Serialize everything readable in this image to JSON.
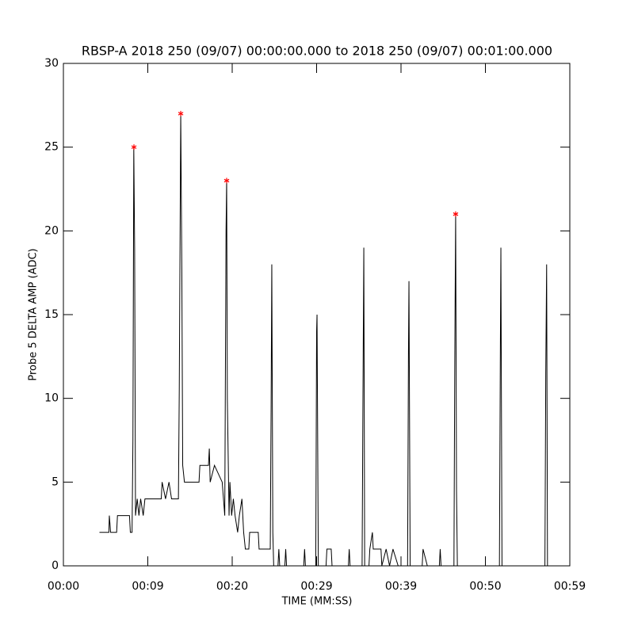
{
  "chart_data": {
    "type": "line",
    "title": "RBSP-A 2018 250 (09/07) 00:00:00.000 to 2018 250 (09/07) 00:01:00.000",
    "xlabel": "TIME (MM:SS)",
    "ylabel": "Probe 5 DELTA AMP (ADC)",
    "xlim": [
      0,
      59
    ],
    "ylim": [
      0,
      30
    ],
    "xticks": [
      {
        "value": 0,
        "label": "00:00"
      },
      {
        "value": 9.833,
        "label": "00:09"
      },
      {
        "value": 19.667,
        "label": "00:20"
      },
      {
        "value": 29.5,
        "label": "00:29"
      },
      {
        "value": 39.333,
        "label": "00:39"
      },
      {
        "value": 49.167,
        "label": "00:50"
      },
      {
        "value": 59,
        "label": "00:59"
      }
    ],
    "yticks": [
      0,
      5,
      10,
      15,
      20,
      25,
      30
    ],
    "series": [
      {
        "color": "#000000",
        "x": [
          4.2,
          5.3,
          5.35,
          5.5,
          6.2,
          6.3,
          7.7,
          7.8,
          8.0,
          8.1,
          8.2,
          8.3,
          8.4,
          8.6,
          8.8,
          9.0,
          9.3,
          9.5,
          11.4,
          11.5,
          11.9,
          12.3,
          12.6,
          13.4,
          13.5,
          13.67,
          13.8,
          13.9,
          14.1,
          15.8,
          15.9,
          16.9,
          17.0,
          17.1,
          17.6,
          18.5,
          18.8,
          18.95,
          19.02,
          19.1,
          19.3,
          19.4,
          19.6,
          19.8,
          20.0,
          20.3,
          20.5,
          20.8,
          21.0,
          21.2,
          21.6,
          21.7,
          22.7,
          22.8,
          24.1,
          24.2,
          24.28,
          24.4,
          24.5,
          25.0,
          25.1,
          25.2,
          25.8,
          25.9,
          26.0,
          28.0,
          28.1,
          28.2,
          29.4,
          29.5,
          29.55,
          29.7,
          30.6,
          30.7,
          31.2,
          31.3,
          33.2,
          33.3,
          33.4,
          34.8,
          34.9,
          35.0,
          35.1,
          35.6,
          35.7,
          36.0,
          36.1,
          37.0,
          37.1,
          37.6,
          38.0,
          38.4,
          39.0,
          40.1,
          40.2,
          40.26,
          40.4,
          41.8,
          41.9,
          42.4,
          43.8,
          43.9,
          44.0,
          45.5,
          45.6,
          45.7,
          45.8,
          45.9,
          50.8,
          50.9,
          50.97,
          51.1,
          56.1,
          56.2,
          56.3,
          56.4
        ],
        "values": [
          2,
          2,
          3,
          2,
          2,
          3,
          3,
          2,
          2,
          7.5,
          25,
          19,
          3,
          4,
          3,
          4,
          3,
          4,
          4,
          5,
          4,
          5,
          4,
          4,
          10.5,
          27,
          17.5,
          6,
          5,
          5,
          6,
          6,
          7,
          5,
          6,
          5,
          3,
          20,
          23,
          10,
          3,
          5,
          3,
          4,
          3,
          2,
          3,
          4,
          2,
          1,
          1,
          2,
          2,
          1,
          1,
          9.5,
          18,
          2,
          0,
          0,
          1,
          0,
          0,
          1,
          0,
          0,
          1,
          0,
          0,
          14,
          15,
          0,
          0,
          1,
          1,
          0,
          0,
          1,
          0,
          0,
          10,
          19,
          0,
          0,
          1,
          2,
          1,
          1,
          0,
          1,
          0,
          1,
          0,
          0,
          12.5,
          17,
          0,
          0,
          1,
          0,
          0,
          1,
          0,
          0,
          12.5,
          21,
          4.5,
          0,
          0,
          12,
          19,
          0,
          0,
          11.5,
          18,
          0
        ]
      },
      {
        "color": "#ff0000",
        "marker": "asterisk",
        "x": [
          8.22,
          13.67,
          19.02,
          45.7
        ],
        "values": [
          25,
          27,
          23,
          21
        ]
      }
    ]
  }
}
